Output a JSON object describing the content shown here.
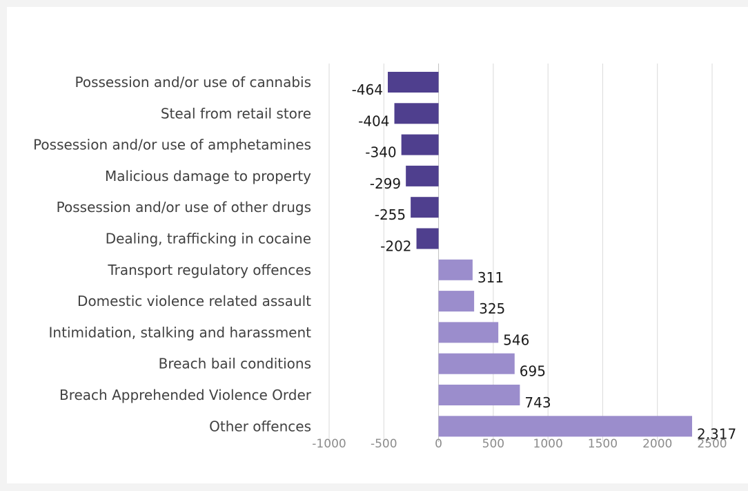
{
  "chart_data": {
    "type": "bar",
    "orientation": "horizontal",
    "title": "",
    "xlabel": "",
    "ylabel": "",
    "xlim": [
      -1000,
      2500
    ],
    "x_ticks": [
      -1000,
      -500,
      0,
      500,
      1000,
      1500,
      2000,
      2500
    ],
    "x_tick_labels": [
      "-1000",
      "-500",
      "0",
      "500",
      "1000",
      "1500",
      "2000",
      "2500"
    ],
    "grid": "vertical",
    "legend": "none",
    "categories": [
      "Possession and/or use of cannabis",
      "Steal from retail store",
      "Possession and/or use of amphetamines",
      "Malicious damage to property",
      "Possession and/or use of other drugs",
      "Dealing, trafficking in cocaine",
      "Transport regulatory offences",
      "Domestic violence related assault",
      "Intimidation, stalking and harassment",
      "Breach bail conditions",
      "Breach Apprehended Violence Order",
      "Other offences"
    ],
    "values": [
      -464,
      -404,
      -340,
      -299,
      -255,
      -202,
      311,
      325,
      546,
      695,
      743,
      2317
    ],
    "data_labels": [
      "-464",
      "-404",
      "-340",
      "-299",
      "-255",
      "-202",
      "311",
      "325",
      "546",
      "695",
      "743",
      "2,317"
    ],
    "colors": {
      "negative": "#4f3f8e",
      "positive": "#9b8dcc"
    }
  }
}
